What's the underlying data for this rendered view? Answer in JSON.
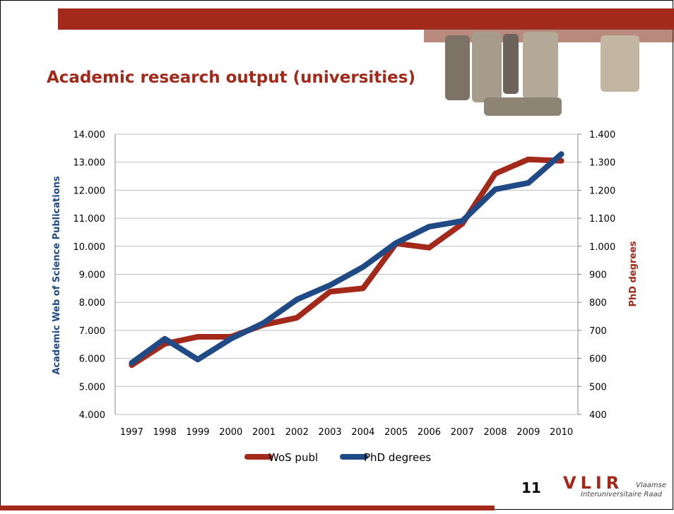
{
  "chart_data": {
    "type": "line",
    "title": "Academic research output (universities)",
    "categories": [
      "1997",
      "1998",
      "1999",
      "2000",
      "2001",
      "2002",
      "2003",
      "2004",
      "2005",
      "2006",
      "2007",
      "2008",
      "2009",
      "2010"
    ],
    "series": [
      {
        "name": "WoS publ",
        "color": "#a3291b",
        "values": [
          5760,
          6520,
          6770,
          6770,
          7200,
          7450,
          8380,
          8500,
          10100,
          9950,
          10800,
          12590,
          13100,
          13050
        ]
      },
      {
        "name": "PhD degrees",
        "color": "#1f4a86",
        "axis": "y2",
        "values": [
          584,
          670,
          596,
          670,
          727,
          810,
          861,
          926,
          1012,
          1070,
          1090,
          1203,
          1226,
          1329
        ]
      }
    ],
    "ylabel": "Academic Web of Science Publications",
    "y2label": "PhD degrees",
    "ylim": [
      4000,
      14000
    ],
    "yticks": [
      {
        "value": 4000,
        "label": "4.000"
      },
      {
        "value": 5000,
        "label": "5.000"
      },
      {
        "value": 6000,
        "label": "6.000"
      },
      {
        "value": 7000,
        "label": "7.000"
      },
      {
        "value": 8000,
        "label": "8.000"
      },
      {
        "value": 9000,
        "label": "9.000"
      },
      {
        "value": 10000,
        "label": "10.000"
      },
      {
        "value": 11000,
        "label": "11.000"
      },
      {
        "value": 12000,
        "label": "12.000"
      },
      {
        "value": 13000,
        "label": "13.000"
      },
      {
        "value": 14000,
        "label": "14.000"
      }
    ],
    "y2lim": [
      400,
      1400
    ],
    "y2ticks": [
      400,
      500,
      600,
      700,
      800,
      900,
      {
        "value": 1000,
        "label": "1.000"
      },
      {
        "value": 1100,
        "label": "1.100"
      },
      {
        "value": 1200,
        "label": "1.200"
      },
      {
        "value": 1300,
        "label": "1.300"
      },
      {
        "value": 1400,
        "label": "1.400"
      }
    ],
    "grid": true,
    "legend": "bottom"
  },
  "slide": {
    "page_number": "11",
    "logo": {
      "mark": "VLIR",
      "line1": "Vlaamse",
      "line2": "Interuniversitaire Raad"
    }
  }
}
